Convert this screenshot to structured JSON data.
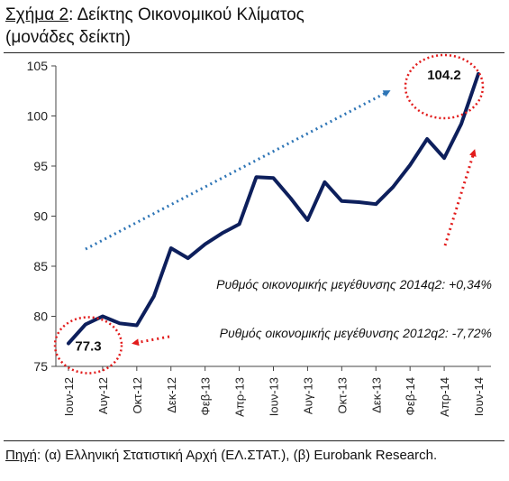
{
  "title": {
    "prefix": "Σχήμα 2",
    "rest": ": Δείκτης Οικονομικού Κλίματος",
    "line2": "(μονάδες δείκτη)"
  },
  "source": {
    "prefix": "Πηγή",
    "rest": ": (α) Ελληνική Στατιστική Αρχή (ΕΛ.ΣΤΑΤ.), (β) Eurobank Research."
  },
  "chart_data": {
    "type": "line",
    "title": "Σχήμα 2: Δείκτης Οικονομικού Κλίματος (μονάδες δείκτη)",
    "xlabel": "",
    "ylabel": "",
    "ylim": [
      75,
      105
    ],
    "yticks": [
      75,
      80,
      85,
      90,
      95,
      100,
      105
    ],
    "xtick_labels": [
      "Ιουν-12",
      "Αυγ-12",
      "Οκτ-12",
      "Δεκ-12",
      "Φεβ-13",
      "Απρ-13",
      "Ιουν-13",
      "Αυγ-13",
      "Οκτ-13",
      "Δεκ-13",
      "Φεβ-14",
      "Απρ-14",
      "Ιουν-14"
    ],
    "x": [
      "Ιουν-12",
      "Ιουλ-12",
      "Αυγ-12",
      "Σεπ-12",
      "Οκτ-12",
      "Νοε-12",
      "Δεκ-12",
      "Ιαν-13",
      "Φεβ-13",
      "Μαρ-13",
      "Απρ-13",
      "Μαϊ-13",
      "Ιουν-13",
      "Ιουλ-13",
      "Αυγ-13",
      "Σεπ-13",
      "Οκτ-13",
      "Νοε-13",
      "Δεκ-13",
      "Ιαν-14",
      "Φεβ-14",
      "Μαρ-14",
      "Απρ-14",
      "Μαϊ-14",
      "Ιουν-14"
    ],
    "series": [
      {
        "color": "#0d1f5c",
        "values": [
          77.3,
          79.2,
          80.0,
          79.3,
          79.1,
          82.0,
          86.8,
          85.8,
          87.2,
          88.3,
          89.2,
          93.9,
          93.8,
          91.8,
          89.6,
          93.4,
          91.5,
          91.4,
          91.2,
          92.9,
          95.1,
          97.7,
          95.8,
          99.2,
          104.2
        ]
      }
    ],
    "annotations": [
      {
        "text": "77.3",
        "x": "Ιουν-12",
        "y": 77.3
      },
      {
        "text": "104.2",
        "x": "Ιουν-14",
        "y": 104.2
      },
      {
        "text": "Ρυθμός οικονομικής μεγέθυνσης 2014q2: +0,34%"
      },
      {
        "text": "Ρυθμός οικονομικής μεγέθυνσης 2012q2: -7,72%"
      }
    ],
    "trend_color": "#2e75b6",
    "accent_red": "#e21b1b",
    "grid": false,
    "legend": "none"
  }
}
